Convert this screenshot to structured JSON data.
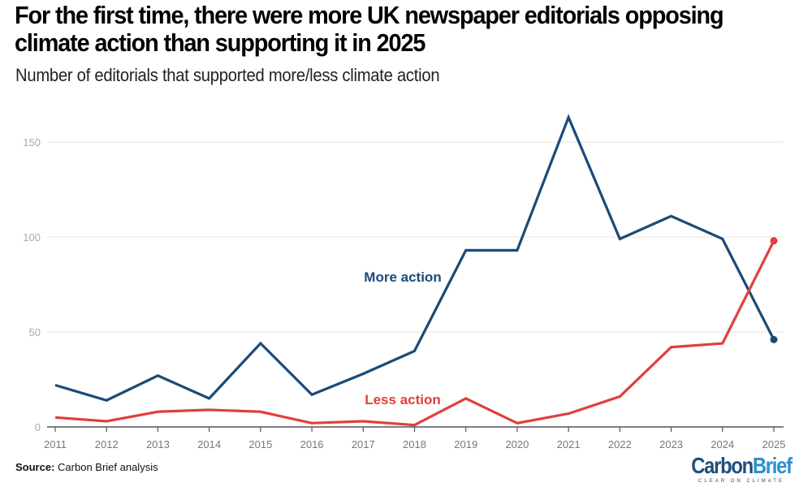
{
  "header": {
    "title": "For the first time, there were more UK newspaper editorials opposing climate action than supporting it in 2025",
    "subtitle": "Number of editorials that supported more/less climate action"
  },
  "footer": {
    "source_label": "Source:",
    "source_text": "Carbon Brief analysis",
    "logo_carbon": "Carbon",
    "logo_brief": "Brief",
    "logo_tagline": "CLEAR ON CLIMATE"
  },
  "chart_data": {
    "type": "line",
    "title": "For the first time, there were more UK newspaper editorials opposing climate action than supporting it in 2025",
    "subtitle": "Number of editorials that supported more/less climate action",
    "xlabel": "",
    "ylabel": "",
    "x": [
      2011,
      2012,
      2013,
      2014,
      2015,
      2016,
      2017,
      2018,
      2019,
      2020,
      2021,
      2022,
      2023,
      2024,
      2025
    ],
    "ylim": [
      0,
      165
    ],
    "yticks": [
      0,
      50,
      100,
      150
    ],
    "grid": true,
    "legend": "inline labels",
    "series": [
      {
        "name": "More action",
        "color": "#1a4b78",
        "values": [
          22,
          14,
          27,
          15,
          44,
          17,
          28,
          40,
          93,
          93,
          163,
          99,
          111,
          99,
          46
        ]
      },
      {
        "name": "Less action",
        "color": "#e0403a",
        "values": [
          5,
          3,
          8,
          9,
          8,
          2,
          3,
          1,
          15,
          2,
          7,
          16,
          42,
          44,
          98
        ]
      }
    ]
  }
}
